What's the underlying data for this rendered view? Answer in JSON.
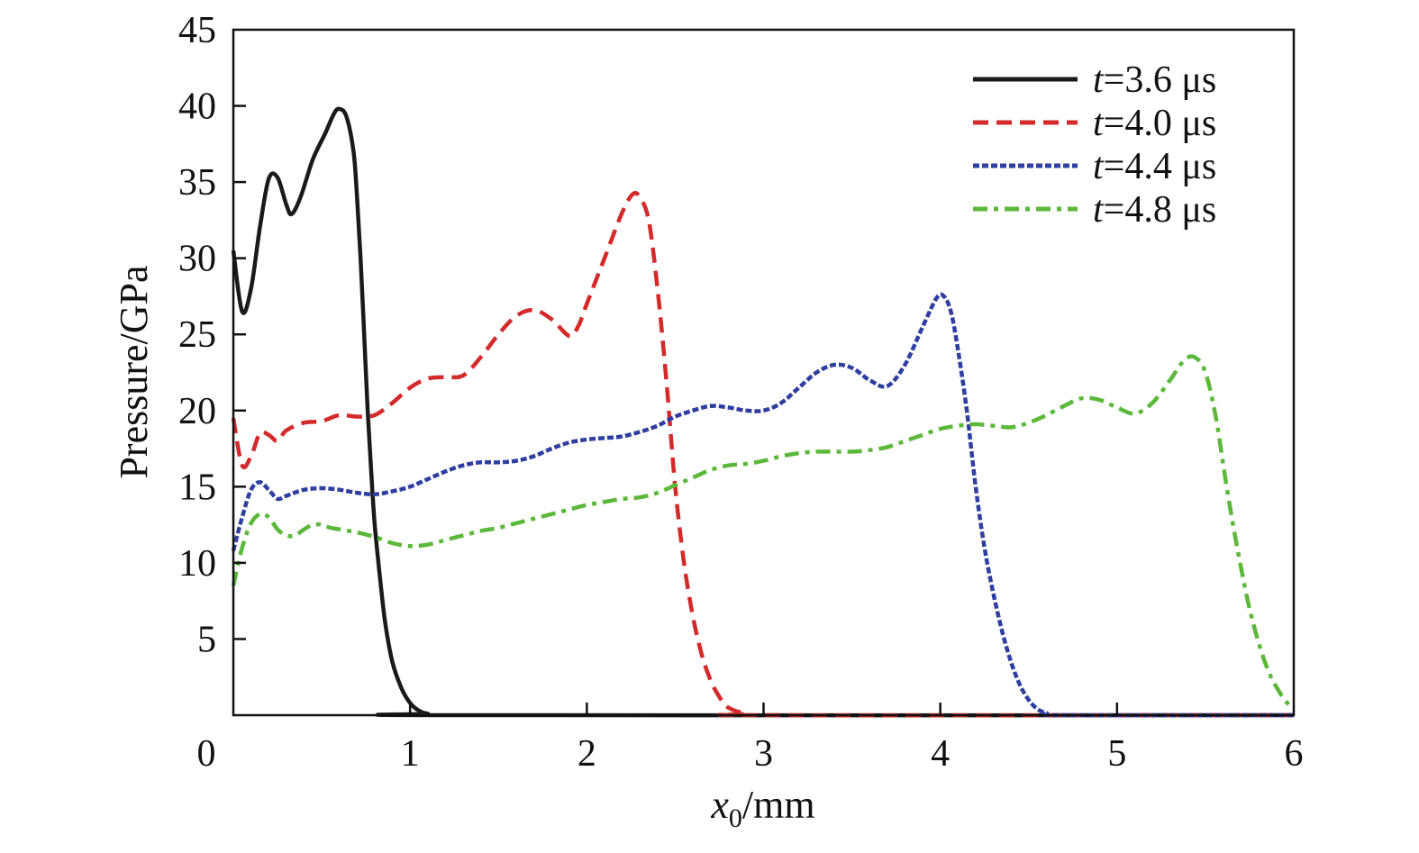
{
  "chart_data": {
    "type": "line",
    "title": "",
    "xlabel": {
      "var": "x",
      "sub": "0",
      "unit": "/mm"
    },
    "ylabel": "Pressure/GPa",
    "xlim": [
      0,
      6
    ],
    "ylim": [
      0,
      45
    ],
    "x_ticks": [
      "0",
      "1",
      "2",
      "3",
      "4",
      "5",
      "6"
    ],
    "y_ticks": [
      "",
      "5",
      "10",
      "15",
      "20",
      "25",
      "30",
      "35",
      "40",
      "45"
    ],
    "grid": false,
    "legend_position": "top-right",
    "series": [
      {
        "name": "t=3.6 μs",
        "name_var": "t",
        "name_rest": "=3.6 μs",
        "color": "#1a1a1a",
        "style": "solid",
        "points": [
          [
            0,
            30.5
          ],
          [
            0.05,
            26.5
          ],
          [
            0.1,
            28
          ],
          [
            0.15,
            32
          ],
          [
            0.2,
            35.2
          ],
          [
            0.25,
            35.3
          ],
          [
            0.3,
            33.5
          ],
          [
            0.33,
            32.9
          ],
          [
            0.38,
            34
          ],
          [
            0.45,
            36.5
          ],
          [
            0.52,
            38.2
          ],
          [
            0.57,
            39.5
          ],
          [
            0.6,
            39.8
          ],
          [
            0.64,
            39.3
          ],
          [
            0.68,
            37
          ],
          [
            0.7,
            34
          ],
          [
            0.72,
            30
          ],
          [
            0.74,
            25
          ],
          [
            0.76,
            20
          ],
          [
            0.78,
            16
          ],
          [
            0.8,
            12.5
          ],
          [
            0.83,
            9
          ],
          [
            0.86,
            6
          ],
          [
            0.9,
            3.5
          ],
          [
            0.95,
            1.8
          ],
          [
            1.0,
            0.8
          ],
          [
            1.05,
            0.3
          ],
          [
            1.1,
            0.1
          ],
          [
            1.2,
            0
          ],
          [
            6,
            0
          ]
        ]
      },
      {
        "name": "t=4.0 μs",
        "name_var": "t",
        "name_rest": "=4.0 μs",
        "color": "#d42a2a",
        "style": "dashed",
        "points": [
          [
            0,
            19.5
          ],
          [
            0.05,
            16.4
          ],
          [
            0.1,
            17
          ],
          [
            0.15,
            18.5
          ],
          [
            0.2,
            18.4
          ],
          [
            0.25,
            18
          ],
          [
            0.3,
            18.7
          ],
          [
            0.4,
            19.2
          ],
          [
            0.5,
            19.3
          ],
          [
            0.6,
            19.7
          ],
          [
            0.7,
            19.6
          ],
          [
            0.8,
            19.7
          ],
          [
            0.9,
            20.5
          ],
          [
            1.0,
            21.5
          ],
          [
            1.1,
            22.1
          ],
          [
            1.2,
            22.2
          ],
          [
            1.3,
            22.3
          ],
          [
            1.4,
            23.5
          ],
          [
            1.5,
            25
          ],
          [
            1.6,
            26.2
          ],
          [
            1.7,
            26.6
          ],
          [
            1.8,
            26
          ],
          [
            1.9,
            24.9
          ],
          [
            1.95,
            25.5
          ],
          [
            2.0,
            27
          ],
          [
            2.1,
            30
          ],
          [
            2.2,
            33
          ],
          [
            2.26,
            34.2
          ],
          [
            2.3,
            34
          ],
          [
            2.35,
            32.5
          ],
          [
            2.4,
            28
          ],
          [
            2.45,
            22
          ],
          [
            2.5,
            15
          ],
          [
            2.55,
            10
          ],
          [
            2.6,
            6.5
          ],
          [
            2.65,
            4
          ],
          [
            2.7,
            2.3
          ],
          [
            2.75,
            1.2
          ],
          [
            2.8,
            0.5
          ],
          [
            2.9,
            0.1
          ],
          [
            3.0,
            0
          ],
          [
            6,
            0
          ]
        ]
      },
      {
        "name": "t=4.4 μs",
        "name_var": "t",
        "name_rest": "=4.4 μs",
        "color": "#2e3fa0",
        "style": "dotted",
        "points": [
          [
            0,
            10.8
          ],
          [
            0.05,
            13
          ],
          [
            0.1,
            14.8
          ],
          [
            0.15,
            15.3
          ],
          [
            0.2,
            14.8
          ],
          [
            0.25,
            14.2
          ],
          [
            0.3,
            14.4
          ],
          [
            0.4,
            14.8
          ],
          [
            0.5,
            14.9
          ],
          [
            0.6,
            14.8
          ],
          [
            0.7,
            14.6
          ],
          [
            0.8,
            14.5
          ],
          [
            0.9,
            14.7
          ],
          [
            1.0,
            15
          ],
          [
            1.1,
            15.5
          ],
          [
            1.2,
            16
          ],
          [
            1.3,
            16.4
          ],
          [
            1.4,
            16.6
          ],
          [
            1.5,
            16.6
          ],
          [
            1.6,
            16.7
          ],
          [
            1.7,
            17
          ],
          [
            1.8,
            17.5
          ],
          [
            1.9,
            17.9
          ],
          [
            2.0,
            18.1
          ],
          [
            2.1,
            18.2
          ],
          [
            2.2,
            18.3
          ],
          [
            2.3,
            18.6
          ],
          [
            2.4,
            19
          ],
          [
            2.5,
            19.6
          ],
          [
            2.6,
            20
          ],
          [
            2.7,
            20.3
          ],
          [
            2.8,
            20.2
          ],
          [
            2.9,
            20
          ],
          [
            3.0,
            20
          ],
          [
            3.1,
            20.5
          ],
          [
            3.2,
            21.5
          ],
          [
            3.3,
            22.5
          ],
          [
            3.4,
            23
          ],
          [
            3.5,
            22.8
          ],
          [
            3.6,
            22
          ],
          [
            3.7,
            21.6
          ],
          [
            3.8,
            23
          ],
          [
            3.9,
            25.5
          ],
          [
            3.98,
            27.4
          ],
          [
            4.02,
            27.5
          ],
          [
            4.06,
            26.5
          ],
          [
            4.1,
            24
          ],
          [
            4.15,
            20
          ],
          [
            4.2,
            15
          ],
          [
            4.25,
            11
          ],
          [
            4.3,
            8
          ],
          [
            4.35,
            5.5
          ],
          [
            4.4,
            3.5
          ],
          [
            4.45,
            2
          ],
          [
            4.5,
            1
          ],
          [
            4.55,
            0.4
          ],
          [
            4.6,
            0.15
          ],
          [
            4.7,
            0
          ],
          [
            6,
            0
          ]
        ]
      },
      {
        "name": "t=4.8 μs",
        "name_var": "t",
        "name_rest": "=4.8 μs",
        "color": "#5cb83a",
        "style": "dashdot",
        "points": [
          [
            0,
            8.5
          ],
          [
            0.05,
            11
          ],
          [
            0.1,
            12.6
          ],
          [
            0.15,
            13.2
          ],
          [
            0.2,
            13
          ],
          [
            0.25,
            12.2
          ],
          [
            0.3,
            11.8
          ],
          [
            0.35,
            11.8
          ],
          [
            0.4,
            12.2
          ],
          [
            0.45,
            12.5
          ],
          [
            0.5,
            12.5
          ],
          [
            0.55,
            12.3
          ],
          [
            0.6,
            12.2
          ],
          [
            0.7,
            12
          ],
          [
            0.8,
            11.7
          ],
          [
            0.9,
            11.3
          ],
          [
            1.0,
            11.1
          ],
          [
            1.1,
            11.2
          ],
          [
            1.2,
            11.5
          ],
          [
            1.3,
            11.8
          ],
          [
            1.4,
            12.1
          ],
          [
            1.5,
            12.3
          ],
          [
            1.6,
            12.6
          ],
          [
            1.7,
            12.9
          ],
          [
            1.8,
            13.2
          ],
          [
            1.9,
            13.5
          ],
          [
            2.0,
            13.8
          ],
          [
            2.1,
            14
          ],
          [
            2.2,
            14.2
          ],
          [
            2.3,
            14.3
          ],
          [
            2.4,
            14.6
          ],
          [
            2.5,
            15.1
          ],
          [
            2.6,
            15.6
          ],
          [
            2.7,
            16.1
          ],
          [
            2.8,
            16.4
          ],
          [
            2.9,
            16.5
          ],
          [
            3.0,
            16.7
          ],
          [
            3.1,
            17
          ],
          [
            3.2,
            17.2
          ],
          [
            3.3,
            17.3
          ],
          [
            3.4,
            17.3
          ],
          [
            3.5,
            17.3
          ],
          [
            3.6,
            17.4
          ],
          [
            3.7,
            17.6
          ],
          [
            3.8,
            18
          ],
          [
            3.9,
            18.4
          ],
          [
            4.0,
            18.8
          ],
          [
            4.1,
            19
          ],
          [
            4.2,
            19.1
          ],
          [
            4.3,
            19
          ],
          [
            4.4,
            18.9
          ],
          [
            4.5,
            19.2
          ],
          [
            4.6,
            19.7
          ],
          [
            4.7,
            20.3
          ],
          [
            4.8,
            20.8
          ],
          [
            4.9,
            20.7
          ],
          [
            5.0,
            20.2
          ],
          [
            5.1,
            19.8
          ],
          [
            5.2,
            20.5
          ],
          [
            5.3,
            22
          ],
          [
            5.38,
            23.3
          ],
          [
            5.44,
            23.5
          ],
          [
            5.5,
            22.5
          ],
          [
            5.56,
            19.5
          ],
          [
            5.62,
            15
          ],
          [
            5.68,
            11
          ],
          [
            5.74,
            7.5
          ],
          [
            5.8,
            4.8
          ],
          [
            5.86,
            2.8
          ],
          [
            5.92,
            1.5
          ],
          [
            5.97,
            0.7
          ]
        ]
      }
    ]
  }
}
